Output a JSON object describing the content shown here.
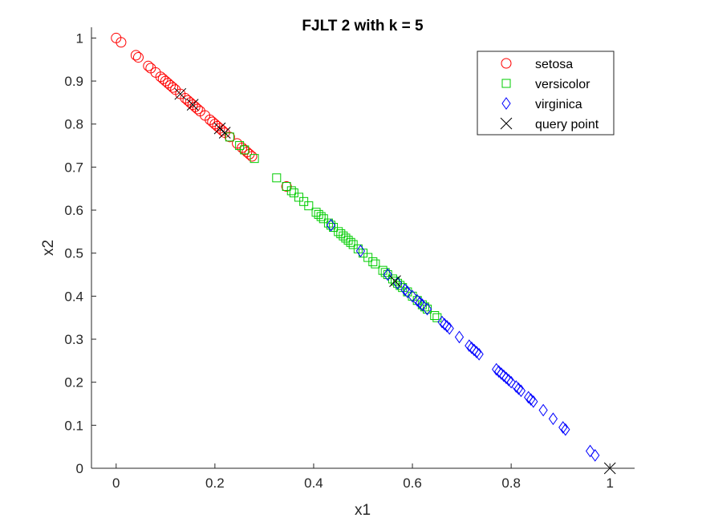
{
  "chart_data": {
    "type": "scatter",
    "title": "FJLT 2 with k = 5",
    "xlabel": "x1",
    "ylabel": "x2",
    "xlim": [
      -0.05,
      1.05
    ],
    "ylim": [
      0,
      1.025
    ],
    "xticks": [
      0,
      0.2,
      0.4,
      0.6,
      0.8,
      1
    ],
    "xtick_labels": [
      "0",
      "0.2",
      "0.4",
      "0.6",
      "0.8",
      "1"
    ],
    "yticks": [
      0,
      0.1,
      0.2,
      0.3,
      0.4,
      0.5,
      0.6,
      0.7,
      0.8,
      0.9,
      1
    ],
    "ytick_labels": [
      "0",
      "0.1",
      "0.2",
      "0.3",
      "0.4",
      "0.5",
      "0.6",
      "0.7",
      "0.8",
      "0.9",
      "1"
    ],
    "grid": false,
    "legend_position": "top-right",
    "series": [
      {
        "name": "setosa",
        "marker": "circle",
        "color": "#ff0000",
        "x": [
          0.0,
          0.01,
          0.04,
          0.045,
          0.065,
          0.07,
          0.08,
          0.09,
          0.095,
          0.1,
          0.105,
          0.11,
          0.115,
          0.12,
          0.13,
          0.14,
          0.145,
          0.15,
          0.155,
          0.16,
          0.165,
          0.17,
          0.18,
          0.19,
          0.195,
          0.2,
          0.205,
          0.21,
          0.215,
          0.22,
          0.23,
          0.245,
          0.255,
          0.26,
          0.265,
          0.27,
          0.275,
          0.345
        ]
      },
      {
        "name": "versicolor",
        "marker": "square",
        "color": "#00cc00",
        "x": [
          0.23,
          0.25,
          0.26,
          0.28,
          0.325,
          0.345,
          0.355,
          0.36,
          0.37,
          0.38,
          0.39,
          0.405,
          0.41,
          0.415,
          0.42,
          0.43,
          0.435,
          0.44,
          0.45,
          0.455,
          0.46,
          0.465,
          0.47,
          0.475,
          0.48,
          0.49,
          0.5,
          0.51,
          0.52,
          0.525,
          0.54,
          0.545,
          0.55,
          0.56,
          0.565,
          0.57,
          0.575,
          0.58,
          0.59,
          0.6,
          0.61,
          0.62,
          0.625,
          0.63,
          0.645,
          0.65
        ]
      },
      {
        "name": "virginica",
        "marker": "diamond",
        "color": "#0000ff",
        "x": [
          0.435,
          0.495,
          0.55,
          0.57,
          0.585,
          0.59,
          0.6,
          0.61,
          0.615,
          0.62,
          0.63,
          0.66,
          0.665,
          0.67,
          0.675,
          0.695,
          0.715,
          0.72,
          0.725,
          0.73,
          0.735,
          0.77,
          0.775,
          0.78,
          0.785,
          0.79,
          0.795,
          0.8,
          0.81,
          0.815,
          0.82,
          0.835,
          0.84,
          0.845,
          0.865,
          0.885,
          0.905,
          0.91,
          0.96,
          0.97
        ]
      },
      {
        "name": "query point",
        "marker": "x",
        "color": "#000000",
        "x": [
          0.13,
          0.155,
          0.21,
          0.22,
          0.565,
          1.0
        ]
      }
    ]
  }
}
